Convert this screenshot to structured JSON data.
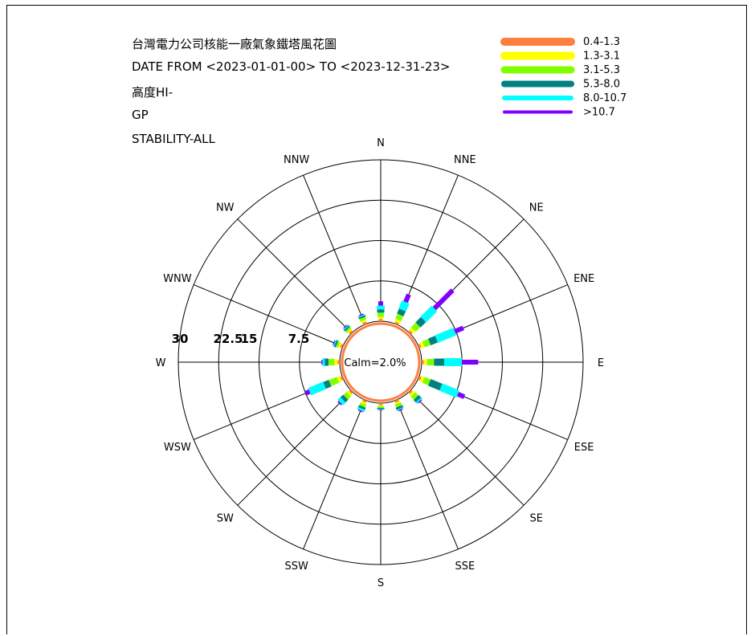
{
  "header": {
    "line1": "台灣電力公司核能一廠氣象鐵塔風花圖",
    "line2": "DATE FROM <2023-01-01-00> TO <2023-12-31-23>",
    "line3": "高度HI-",
    "line4": "GP",
    "line5": "STABILITY-ALL"
  },
  "chart_data": {
    "type": "wind-rose",
    "directions": [
      "N",
      "NNE",
      "NE",
      "ENE",
      "E",
      "ESE",
      "SE",
      "SSE",
      "S",
      "SSW",
      "SW",
      "WSW",
      "W",
      "WNW",
      "NW",
      "NNW"
    ],
    "ring_labels": [
      "7.5",
      "15",
      "22.5",
      "30"
    ],
    "rmax": 30,
    "calm_text": "Calm=2.0%",
    "calm_percent": 2.0,
    "speed_classes": [
      {
        "label": "0.4-1.3",
        "color": "#ff7f3f"
      },
      {
        "label": "1.3-3.1",
        "color": "#ffff00"
      },
      {
        "label": "3.1-5.3",
        "color": "#80ff00"
      },
      {
        "label": "5.3-8.0",
        "color": "#008080"
      },
      {
        "label": "8.0-10.7",
        "color": "#00ffff"
      },
      {
        "label": ">10.7",
        "color": "#8000ff"
      }
    ],
    "frequency_units": "percent",
    "cumulative_percent": {
      "N": [
        0.4,
        0.8,
        1.6,
        2.2,
        2.9,
        3.7
      ],
      "NNE": [
        0.4,
        0.9,
        1.9,
        2.9,
        4.5,
        6.0
      ],
      "NE": [
        0.4,
        1.0,
        2.2,
        3.6,
        6.5,
        11.3
      ],
      "ENE": [
        0.4,
        1.0,
        2.2,
        3.6,
        7.3,
        9.0
      ],
      "E": [
        0.4,
        1.0,
        2.3,
        4.2,
        7.5,
        10.5
      ],
      "ESE": [
        0.4,
        1.0,
        2.2,
        4.5,
        7.9,
        9.2
      ],
      "SE": [
        0.4,
        0.9,
        1.7,
        2.3,
        2.6,
        2.8
      ],
      "SSE": [
        0.4,
        0.7,
        1.3,
        1.7,
        1.9,
        2.1
      ],
      "S": [
        0.4,
        0.6,
        0.9,
        1.1,
        1.2,
        1.3
      ],
      "SSW": [
        0.4,
        0.8,
        1.3,
        1.7,
        2.1,
        2.3
      ],
      "SW": [
        0.4,
        0.8,
        1.6,
        2.3,
        3.0,
        3.3
      ],
      "WSW": [
        0.4,
        1.0,
        2.6,
        3.7,
        6.7,
        7.5
      ],
      "W": [
        0.4,
        1.0,
        2.1,
        2.8,
        3.2,
        3.4
      ],
      "WNW": [
        0.4,
        0.8,
        1.2,
        1.5,
        1.7,
        1.9
      ],
      "NW": [
        0.4,
        0.7,
        1.1,
        1.4,
        1.6,
        1.8
      ],
      "NNW": [
        0.4,
        0.8,
        1.3,
        1.6,
        1.8,
        2.0
      ]
    }
  }
}
